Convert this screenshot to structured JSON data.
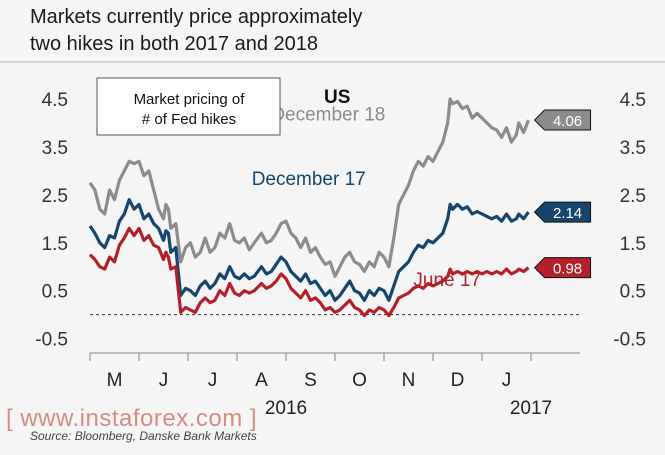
{
  "title_line1": "Markets currently price approximately",
  "title_line2": "two hikes in both 2017 and 2018",
  "source": "Source: Bloomberg, Danske Bank Markets",
  "watermark": "[ www.instaforex.com ]",
  "chart_data": {
    "type": "line",
    "title": "Markets currently price approximately two hikes in both 2017 and 2018",
    "panel_label": "US",
    "legend_box": [
      "Market pricing of",
      "# of Fed hikes"
    ],
    "ylim": [
      -0.8,
      5.0
    ],
    "y_ticks": [
      "4.5",
      "3.5",
      "2.5",
      "1.5",
      "0.5",
      "-0.5"
    ],
    "y_tick_values": [
      4.5,
      3.5,
      2.5,
      1.5,
      0.5,
      -0.5
    ],
    "x_range": [
      0,
      10
    ],
    "x_month_labels": [
      "M",
      "J",
      "J",
      "A",
      "S",
      "O",
      "N",
      "D",
      "J"
    ],
    "x_month_positions": [
      0.5,
      1.5,
      2.5,
      3.5,
      4.5,
      5.5,
      6.5,
      7.5,
      8.5
    ],
    "x_year_labels": [
      {
        "label": "2016",
        "x": 4.0
      },
      {
        "label": "2017",
        "x": 9.0
      }
    ],
    "zero_line": 0,
    "series": [
      {
        "name": "December 18",
        "color": "#8c8c8c",
        "end_value": "4.06",
        "points": [
          [
            0,
            2.75
          ],
          [
            0.1,
            2.6
          ],
          [
            0.2,
            2.2
          ],
          [
            0.3,
            2.1
          ],
          [
            0.4,
            2.6
          ],
          [
            0.5,
            2.4
          ],
          [
            0.6,
            2.8
          ],
          [
            0.7,
            3.0
          ],
          [
            0.8,
            3.2
          ],
          [
            0.9,
            3.15
          ],
          [
            1.0,
            3.2
          ],
          [
            1.1,
            2.9
          ],
          [
            1.2,
            3.0
          ],
          [
            1.3,
            2.6
          ],
          [
            1.4,
            2.2
          ],
          [
            1.5,
            2.0
          ],
          [
            1.55,
            2.3
          ],
          [
            1.6,
            2.2
          ],
          [
            1.65,
            1.8
          ],
          [
            1.75,
            1.9
          ],
          [
            1.85,
            1.1
          ],
          [
            1.95,
            1.4
          ],
          [
            2.05,
            1.5
          ],
          [
            2.15,
            1.2
          ],
          [
            2.25,
            1.3
          ],
          [
            2.35,
            1.6
          ],
          [
            2.45,
            1.3
          ],
          [
            2.55,
            1.4
          ],
          [
            2.65,
            1.7
          ],
          [
            2.75,
            1.6
          ],
          [
            2.85,
            1.9
          ],
          [
            2.95,
            1.55
          ],
          [
            3.05,
            1.5
          ],
          [
            3.15,
            1.6
          ],
          [
            3.25,
            1.35
          ],
          [
            3.35,
            1.5
          ],
          [
            3.5,
            1.7
          ],
          [
            3.6,
            1.5
          ],
          [
            3.7,
            1.55
          ],
          [
            3.8,
            1.7
          ],
          [
            3.9,
            1.9
          ],
          [
            4.0,
            1.95
          ],
          [
            4.1,
            1.7
          ],
          [
            4.2,
            1.6
          ],
          [
            4.3,
            1.4
          ],
          [
            4.4,
            1.6
          ],
          [
            4.5,
            1.3
          ],
          [
            4.6,
            1.4
          ],
          [
            4.7,
            1.2
          ],
          [
            4.8,
            1.05
          ],
          [
            4.9,
            1.1
          ],
          [
            5.0,
            0.8
          ],
          [
            5.1,
            1.0
          ],
          [
            5.2,
            1.2
          ],
          [
            5.3,
            1.3
          ],
          [
            5.4,
            1.1
          ],
          [
            5.5,
            1.05
          ],
          [
            5.6,
            0.9
          ],
          [
            5.7,
            1.1
          ],
          [
            5.8,
            1.0
          ],
          [
            5.9,
            1.3
          ],
          [
            6.0,
            1.2
          ],
          [
            6.1,
            1.0
          ],
          [
            6.2,
            1.6
          ],
          [
            6.3,
            2.3
          ],
          [
            6.4,
            2.5
          ],
          [
            6.5,
            2.7
          ],
          [
            6.6,
            3.0
          ],
          [
            6.7,
            3.2
          ],
          [
            6.8,
            3.1
          ],
          [
            6.9,
            3.3
          ],
          [
            7.0,
            3.2
          ],
          [
            7.1,
            3.4
          ],
          [
            7.2,
            3.6
          ],
          [
            7.3,
            4.0
          ],
          [
            7.35,
            4.5
          ],
          [
            7.4,
            4.4
          ],
          [
            7.5,
            4.45
          ],
          [
            7.6,
            4.3
          ],
          [
            7.7,
            4.35
          ],
          [
            7.8,
            4.1
          ],
          [
            7.9,
            4.2
          ],
          [
            8.0,
            4.1
          ],
          [
            8.1,
            4.0
          ],
          [
            8.2,
            3.9
          ],
          [
            8.3,
            3.85
          ],
          [
            8.4,
            3.7
          ],
          [
            8.5,
            3.9
          ],
          [
            8.6,
            3.6
          ],
          [
            8.7,
            3.75
          ],
          [
            8.75,
            4.0
          ],
          [
            8.85,
            3.8
          ],
          [
            8.95,
            4.06
          ]
        ]
      },
      {
        "name": "December 17",
        "color": "#16466e",
        "end_value": "2.14",
        "points": [
          [
            0,
            1.85
          ],
          [
            0.1,
            1.7
          ],
          [
            0.2,
            1.5
          ],
          [
            0.3,
            1.4
          ],
          [
            0.4,
            1.65
          ],
          [
            0.5,
            1.6
          ],
          [
            0.6,
            1.95
          ],
          [
            0.7,
            2.1
          ],
          [
            0.8,
            2.4
          ],
          [
            0.9,
            2.2
          ],
          [
            1.0,
            2.3
          ],
          [
            1.1,
            2.0
          ],
          [
            1.2,
            2.1
          ],
          [
            1.3,
            1.9
          ],
          [
            1.4,
            1.8
          ],
          [
            1.5,
            1.55
          ],
          [
            1.55,
            1.75
          ],
          [
            1.6,
            1.7
          ],
          [
            1.65,
            1.3
          ],
          [
            1.75,
            1.4
          ],
          [
            1.85,
            0.4
          ],
          [
            1.95,
            0.55
          ],
          [
            2.05,
            0.5
          ],
          [
            2.15,
            0.4
          ],
          [
            2.25,
            0.6
          ],
          [
            2.35,
            0.7
          ],
          [
            2.45,
            0.55
          ],
          [
            2.55,
            0.65
          ],
          [
            2.65,
            0.85
          ],
          [
            2.75,
            0.75
          ],
          [
            2.85,
            1.0
          ],
          [
            2.95,
            0.8
          ],
          [
            3.05,
            0.75
          ],
          [
            3.15,
            0.85
          ],
          [
            3.25,
            0.75
          ],
          [
            3.35,
            0.8
          ],
          [
            3.5,
            1.0
          ],
          [
            3.6,
            0.85
          ],
          [
            3.7,
            0.9
          ],
          [
            3.8,
            1.05
          ],
          [
            3.9,
            1.2
          ],
          [
            4.0,
            1.1
          ],
          [
            4.1,
            0.9
          ],
          [
            4.2,
            0.8
          ],
          [
            4.3,
            0.7
          ],
          [
            4.4,
            0.85
          ],
          [
            4.5,
            0.65
          ],
          [
            4.6,
            0.7
          ],
          [
            4.7,
            0.55
          ],
          [
            4.8,
            0.4
          ],
          [
            4.9,
            0.5
          ],
          [
            5.0,
            0.3
          ],
          [
            5.1,
            0.4
          ],
          [
            5.2,
            0.55
          ],
          [
            5.3,
            0.7
          ],
          [
            5.4,
            0.5
          ],
          [
            5.5,
            0.45
          ],
          [
            5.6,
            0.3
          ],
          [
            5.7,
            0.5
          ],
          [
            5.8,
            0.4
          ],
          [
            5.9,
            0.55
          ],
          [
            6.0,
            0.5
          ],
          [
            6.1,
            0.3
          ],
          [
            6.2,
            0.6
          ],
          [
            6.3,
            0.9
          ],
          [
            6.4,
            1.0
          ],
          [
            6.5,
            1.1
          ],
          [
            6.6,
            1.3
          ],
          [
            6.7,
            1.45
          ],
          [
            6.8,
            1.4
          ],
          [
            6.9,
            1.55
          ],
          [
            7.0,
            1.5
          ],
          [
            7.1,
            1.6
          ],
          [
            7.2,
            1.7
          ],
          [
            7.3,
            2.0
          ],
          [
            7.35,
            2.3
          ],
          [
            7.4,
            2.2
          ],
          [
            7.5,
            2.3
          ],
          [
            7.6,
            2.2
          ],
          [
            7.7,
            2.25
          ],
          [
            7.8,
            2.1
          ],
          [
            7.9,
            2.15
          ],
          [
            8.0,
            2.1
          ],
          [
            8.1,
            2.05
          ],
          [
            8.2,
            2.0
          ],
          [
            8.3,
            2.05
          ],
          [
            8.4,
            1.95
          ],
          [
            8.5,
            2.1
          ],
          [
            8.6,
            1.95
          ],
          [
            8.7,
            2.0
          ],
          [
            8.75,
            2.1
          ],
          [
            8.85,
            2.0
          ],
          [
            8.95,
            2.14
          ]
        ]
      },
      {
        "name": "June 17",
        "color": "#b3202a",
        "end_value": "0.98",
        "points": [
          [
            0,
            1.25
          ],
          [
            0.1,
            1.15
          ],
          [
            0.2,
            1.0
          ],
          [
            0.3,
            0.95
          ],
          [
            0.4,
            1.2
          ],
          [
            0.5,
            1.1
          ],
          [
            0.6,
            1.45
          ],
          [
            0.7,
            1.6
          ],
          [
            0.8,
            1.8
          ],
          [
            0.9,
            1.65
          ],
          [
            1.0,
            1.8
          ],
          [
            1.1,
            1.55
          ],
          [
            1.2,
            1.65
          ],
          [
            1.3,
            1.45
          ],
          [
            1.4,
            1.4
          ],
          [
            1.5,
            1.15
          ],
          [
            1.55,
            1.3
          ],
          [
            1.6,
            1.2
          ],
          [
            1.65,
            0.95
          ],
          [
            1.75,
            1.0
          ],
          [
            1.85,
            0.05
          ],
          [
            1.95,
            0.15
          ],
          [
            2.05,
            0.1
          ],
          [
            2.15,
            0.05
          ],
          [
            2.25,
            0.25
          ],
          [
            2.35,
            0.35
          ],
          [
            2.45,
            0.25
          ],
          [
            2.55,
            0.3
          ],
          [
            2.65,
            0.5
          ],
          [
            2.75,
            0.4
          ],
          [
            2.85,
            0.65
          ],
          [
            2.95,
            0.45
          ],
          [
            3.05,
            0.4
          ],
          [
            3.15,
            0.5
          ],
          [
            3.25,
            0.45
          ],
          [
            3.35,
            0.5
          ],
          [
            3.5,
            0.65
          ],
          [
            3.6,
            0.55
          ],
          [
            3.7,
            0.6
          ],
          [
            3.8,
            0.7
          ],
          [
            3.9,
            0.85
          ],
          [
            4.0,
            0.75
          ],
          [
            4.1,
            0.55
          ],
          [
            4.2,
            0.45
          ],
          [
            4.3,
            0.35
          ],
          [
            4.4,
            0.5
          ],
          [
            4.5,
            0.3
          ],
          [
            4.6,
            0.35
          ],
          [
            4.7,
            0.25
          ],
          [
            4.8,
            0.1
          ],
          [
            4.9,
            0.15
          ],
          [
            5.0,
            0.05
          ],
          [
            5.1,
            0.1
          ],
          [
            5.2,
            0.2
          ],
          [
            5.3,
            0.3
          ],
          [
            5.4,
            0.15
          ],
          [
            5.5,
            0.1
          ],
          [
            5.6,
            -0.02
          ],
          [
            5.7,
            0.1
          ],
          [
            5.8,
            0.05
          ],
          [
            5.9,
            0.15
          ],
          [
            6.0,
            0.1
          ],
          [
            6.1,
            -0.02
          ],
          [
            6.2,
            0.15
          ],
          [
            6.3,
            0.35
          ],
          [
            6.4,
            0.4
          ],
          [
            6.5,
            0.45
          ],
          [
            6.6,
            0.55
          ],
          [
            6.7,
            0.6
          ],
          [
            6.8,
            0.55
          ],
          [
            6.9,
            0.65
          ],
          [
            7.0,
            0.6
          ],
          [
            7.1,
            0.65
          ],
          [
            7.2,
            0.7
          ],
          [
            7.3,
            0.8
          ],
          [
            7.35,
            0.95
          ],
          [
            7.4,
            0.85
          ],
          [
            7.5,
            0.9
          ],
          [
            7.6,
            0.85
          ],
          [
            7.7,
            0.9
          ],
          [
            7.8,
            0.85
          ],
          [
            7.9,
            0.9
          ],
          [
            8.0,
            0.85
          ],
          [
            8.1,
            0.9
          ],
          [
            8.2,
            0.85
          ],
          [
            8.3,
            0.9
          ],
          [
            8.4,
            0.85
          ],
          [
            8.5,
            0.95
          ],
          [
            8.6,
            0.85
          ],
          [
            8.7,
            0.9
          ],
          [
            8.75,
            0.95
          ],
          [
            8.85,
            0.9
          ],
          [
            8.95,
            0.98
          ]
        ]
      }
    ]
  }
}
